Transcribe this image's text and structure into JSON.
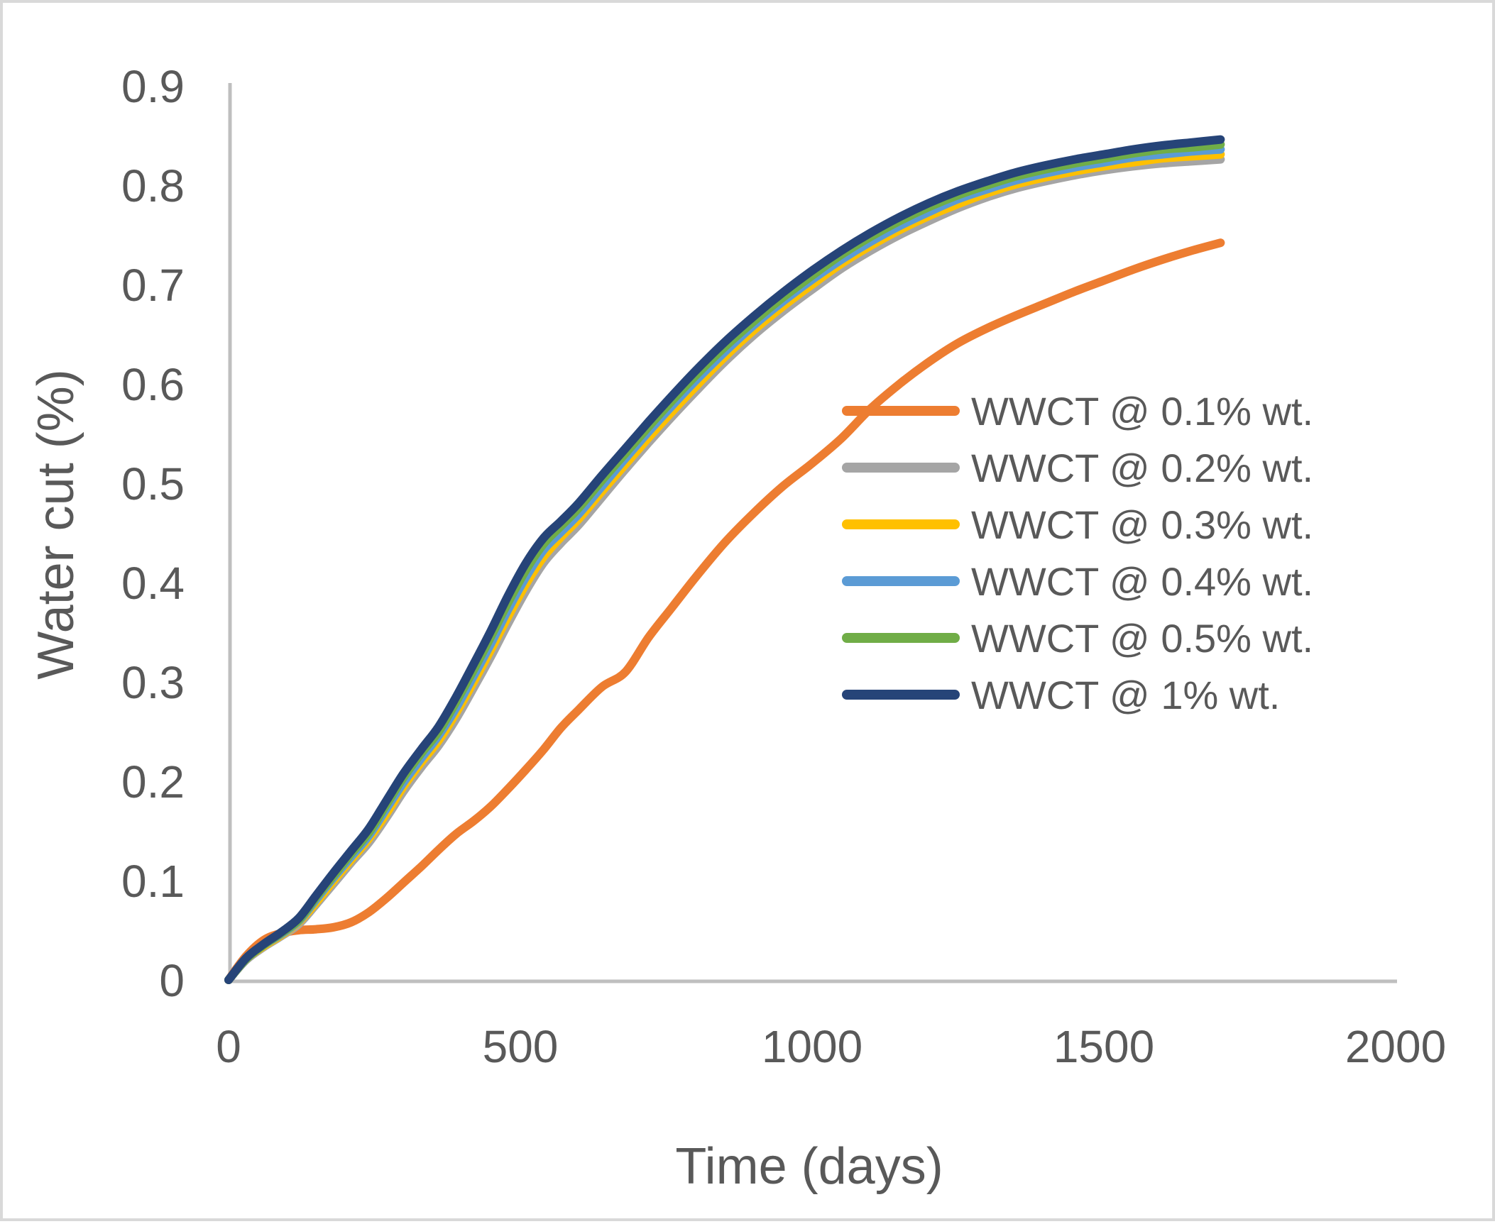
{
  "figure": {
    "background": "#FFFFFF",
    "border_color": "#D9D9D9"
  },
  "axes": {
    "x_title": "Time (days)",
    "y_title": "Water cut (%)",
    "x_tick_labels": [
      "0",
      "500",
      "1000",
      "1500",
      "2000"
    ],
    "x_tick_values": [
      0,
      500,
      1000,
      1500,
      2000
    ],
    "y_tick_labels": [
      "0",
      "0.1",
      "0.2",
      "0.3",
      "0.4",
      "0.5",
      "0.6",
      "0.7",
      "0.8",
      "0.9"
    ],
    "y_tick_values": [
      0,
      0.1,
      0.2,
      0.3,
      0.4,
      0.5,
      0.6,
      0.7,
      0.8,
      0.9
    ],
    "axis_line_color": "#BFBFBF",
    "text_color": "#595959"
  },
  "legend": [
    {
      "label": "WWCT @ 0.1% wt.",
      "color": "#ED7D31"
    },
    {
      "label": "WWCT @ 0.2% wt.",
      "color": "#A5A5A5"
    },
    {
      "label": "WWCT @ 0.3% wt.",
      "color": "#FFC000"
    },
    {
      "label": "WWCT @ 0.4% wt.",
      "color": "#5B9BD5"
    },
    {
      "label": "WWCT @ 0.5% wt.",
      "color": "#70AD47"
    },
    {
      "label": "WWCT @ 1% wt.",
      "color": "#264478"
    }
  ],
  "chart_data": {
    "type": "line",
    "title": "",
    "xlabel": "Time (days)",
    "ylabel": "Water cut (%)",
    "xlim": [
      0,
      2000
    ],
    "ylim": [
      0,
      0.9
    ],
    "grid": false,
    "legend_position": "center-right",
    "x": [
      0,
      30,
      60,
      90,
      120,
      150,
      180,
      210,
      240,
      270,
      300,
      330,
      360,
      390,
      420,
      450,
      480,
      510,
      540,
      570,
      600,
      640,
      680,
      720,
      760,
      800,
      850,
      900,
      950,
      1000,
      1050,
      1100,
      1150,
      1200,
      1250,
      1300,
      1350,
      1400,
      1450,
      1500,
      1550,
      1600,
      1650,
      1700
    ],
    "series": [
      {
        "name": "WWCT @ 0.1% wt.",
        "color": "#ED7D31",
        "values": [
          0,
          0.024,
          0.04,
          0.047,
          0.05,
          0.051,
          0.053,
          0.058,
          0.068,
          0.082,
          0.098,
          0.114,
          0.131,
          0.147,
          0.16,
          0.175,
          0.193,
          0.212,
          0.232,
          0.254,
          0.272,
          0.295,
          0.31,
          0.345,
          0.375,
          0.405,
          0.44,
          0.47,
          0.497,
          0.52,
          0.545,
          0.575,
          0.6,
          0.622,
          0.641,
          0.656,
          0.669,
          0.681,
          0.693,
          0.704,
          0.715,
          0.725,
          0.734,
          0.742
        ]
      },
      {
        "name": "WWCT @ 0.2% wt.",
        "color": "#A5A5A5",
        "values": [
          0,
          0.02,
          0.033,
          0.044,
          0.056,
          0.076,
          0.097,
          0.118,
          0.138,
          0.163,
          0.19,
          0.214,
          0.236,
          0.263,
          0.294,
          0.326,
          0.36,
          0.392,
          0.42,
          0.44,
          0.458,
          0.486,
          0.514,
          0.541,
          0.567,
          0.592,
          0.622,
          0.649,
          0.673,
          0.695,
          0.716,
          0.734,
          0.75,
          0.764,
          0.777,
          0.788,
          0.797,
          0.804,
          0.81,
          0.815,
          0.819,
          0.822,
          0.824,
          0.826
        ]
      },
      {
        "name": "WWCT @ 0.3% wt.",
        "color": "#FFC000",
        "values": [
          0,
          0.021,
          0.034,
          0.045,
          0.058,
          0.078,
          0.1,
          0.121,
          0.142,
          0.167,
          0.195,
          0.219,
          0.241,
          0.269,
          0.3,
          0.333,
          0.367,
          0.399,
          0.426,
          0.446,
          0.464,
          0.492,
          0.519,
          0.546,
          0.572,
          0.597,
          0.627,
          0.654,
          0.678,
          0.7,
          0.721,
          0.739,
          0.755,
          0.769,
          0.781,
          0.792,
          0.801,
          0.808,
          0.814,
          0.819,
          0.823,
          0.827,
          0.829,
          0.831
        ]
      },
      {
        "name": "WWCT @ 0.4% wt.",
        "color": "#5B9BD5",
        "values": [
          0,
          0.021,
          0.035,
          0.046,
          0.059,
          0.081,
          0.103,
          0.124,
          0.145,
          0.172,
          0.199,
          0.223,
          0.246,
          0.274,
          0.306,
          0.339,
          0.374,
          0.406,
          0.433,
          0.451,
          0.469,
          0.497,
          0.525,
          0.552,
          0.578,
          0.603,
          0.632,
          0.659,
          0.683,
          0.705,
          0.725,
          0.743,
          0.759,
          0.773,
          0.786,
          0.796,
          0.805,
          0.812,
          0.818,
          0.823,
          0.828,
          0.831,
          0.834,
          0.836
        ]
      },
      {
        "name": "WWCT @ 0.5% wt.",
        "color": "#70AD47",
        "values": [
          0,
          0.021,
          0.035,
          0.047,
          0.06,
          0.083,
          0.105,
          0.127,
          0.148,
          0.176,
          0.204,
          0.228,
          0.25,
          0.28,
          0.312,
          0.346,
          0.381,
          0.413,
          0.439,
          0.457,
          0.475,
          0.503,
          0.53,
          0.557,
          0.583,
          0.608,
          0.637,
          0.663,
          0.687,
          0.709,
          0.73,
          0.748,
          0.764,
          0.778,
          0.79,
          0.8,
          0.809,
          0.816,
          0.822,
          0.827,
          0.832,
          0.836,
          0.838,
          0.841
        ]
      },
      {
        "name": "WWCT @ 1% wt.",
        "color": "#264478",
        "values": [
          0,
          0.022,
          0.036,
          0.048,
          0.062,
          0.085,
          0.108,
          0.13,
          0.152,
          0.18,
          0.208,
          0.232,
          0.255,
          0.285,
          0.318,
          0.352,
          0.388,
          0.42,
          0.445,
          0.462,
          0.48,
          0.508,
          0.535,
          0.562,
          0.588,
          0.613,
          0.642,
          0.668,
          0.692,
          0.714,
          0.734,
          0.752,
          0.768,
          0.782,
          0.794,
          0.804,
          0.813,
          0.82,
          0.826,
          0.831,
          0.836,
          0.84,
          0.843,
          0.846
        ]
      }
    ]
  }
}
